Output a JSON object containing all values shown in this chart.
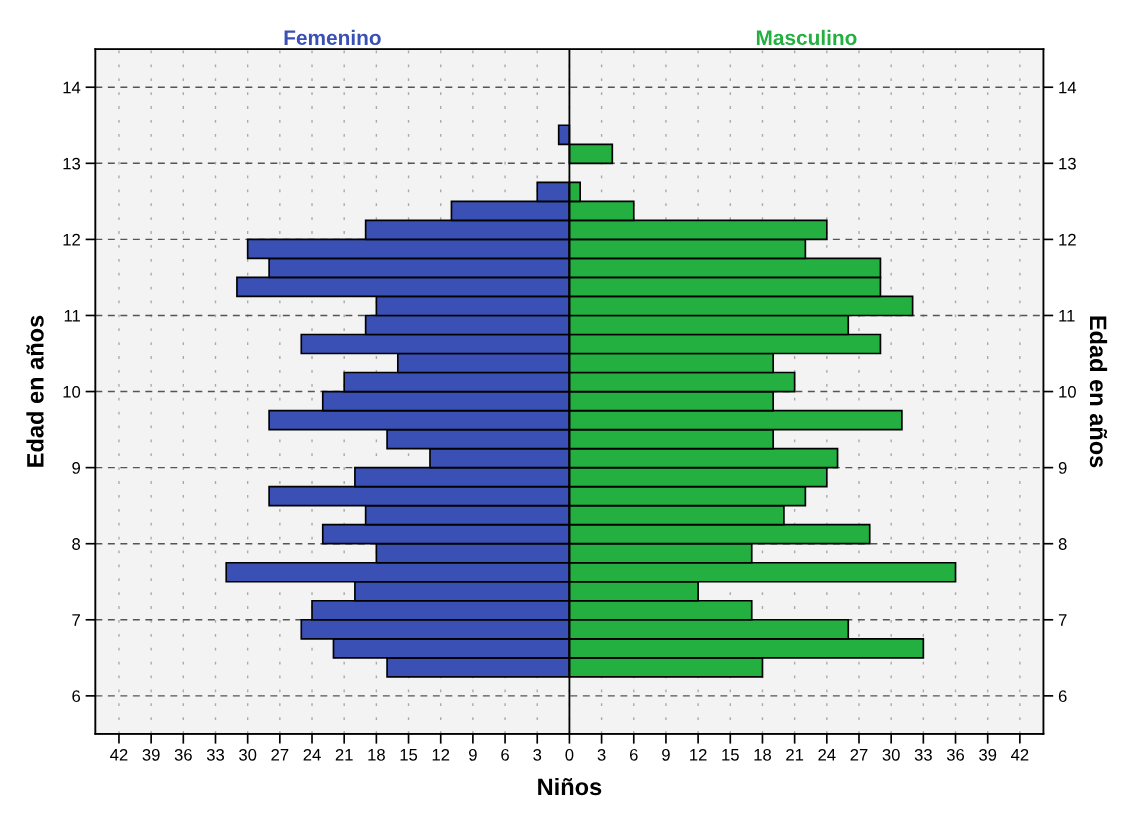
{
  "chart_data": {
    "type": "bar",
    "orientation": "horizontal",
    "xlabel": "Niños",
    "ylabel": "Edad en años",
    "y2label": "Edad en años",
    "x": [
      6.375,
      6.625,
      6.875,
      7.125,
      7.375,
      7.625,
      7.875,
      8.125,
      8.375,
      8.625,
      8.875,
      9.125,
      9.375,
      9.625,
      9.875,
      10.125,
      10.375,
      10.625,
      10.875,
      11.125,
      11.375,
      11.625,
      11.875,
      12.125,
      12.375,
      12.625,
      12.875,
      13.125,
      13.375
    ],
    "series": [
      {
        "name": "Femenino",
        "color": "#3a50b4",
        "values": [
          -17,
          -22,
          -25,
          -24,
          -20,
          -32,
          -18,
          -23,
          -19,
          -28,
          -20,
          -13,
          -17,
          -28,
          -23,
          -21,
          -16,
          -25,
          -19,
          -18,
          -31,
          -28,
          -30,
          -19,
          -11,
          -3,
          null,
          null,
          -1
        ]
      },
      {
        "name": "Masculino",
        "color": "#24b040",
        "values": [
          18,
          33,
          26,
          17,
          12,
          36,
          17,
          28,
          20,
          22,
          24,
          25,
          19,
          31,
          19,
          21,
          19,
          29,
          26,
          32,
          29,
          29,
          22,
          24,
          6,
          1,
          null,
          4,
          null
        ]
      }
    ],
    "xlim": [
      -44.2,
      44.2
    ],
    "xticks": [
      {
        "value": -42,
        "label": "42"
      },
      {
        "value": -39,
        "label": "39"
      },
      {
        "value": -36,
        "label": "36"
      },
      {
        "value": -33,
        "label": "33"
      },
      {
        "value": -30,
        "label": "30"
      },
      {
        "value": -27,
        "label": "27"
      },
      {
        "value": -24,
        "label": "24"
      },
      {
        "value": -21,
        "label": "21"
      },
      {
        "value": -18,
        "label": "18"
      },
      {
        "value": -15,
        "label": "15"
      },
      {
        "value": -12,
        "label": "12"
      },
      {
        "value": -9,
        "label": "9"
      },
      {
        "value": -6,
        "label": "6"
      },
      {
        "value": -3,
        "label": "3"
      },
      0,
      3,
      6,
      9,
      12,
      15,
      18,
      21,
      24,
      27,
      30,
      33,
      36,
      39,
      42
    ],
    "ylim": [
      5.5,
      14.5
    ],
    "yticks": [
      6,
      7,
      8,
      9,
      10,
      11,
      12,
      13,
      14
    ],
    "y2lim": [
      5.5,
      14.5
    ],
    "y2ticks": [
      6,
      7,
      8,
      9,
      10,
      11,
      12,
      13,
      14
    ],
    "ref_lines": [
      {
        "axis": "x",
        "value": 0,
        "color": "#000000",
        "line_style": "solid"
      }
    ],
    "grid": true,
    "legend": false,
    "stacked": true
  }
}
